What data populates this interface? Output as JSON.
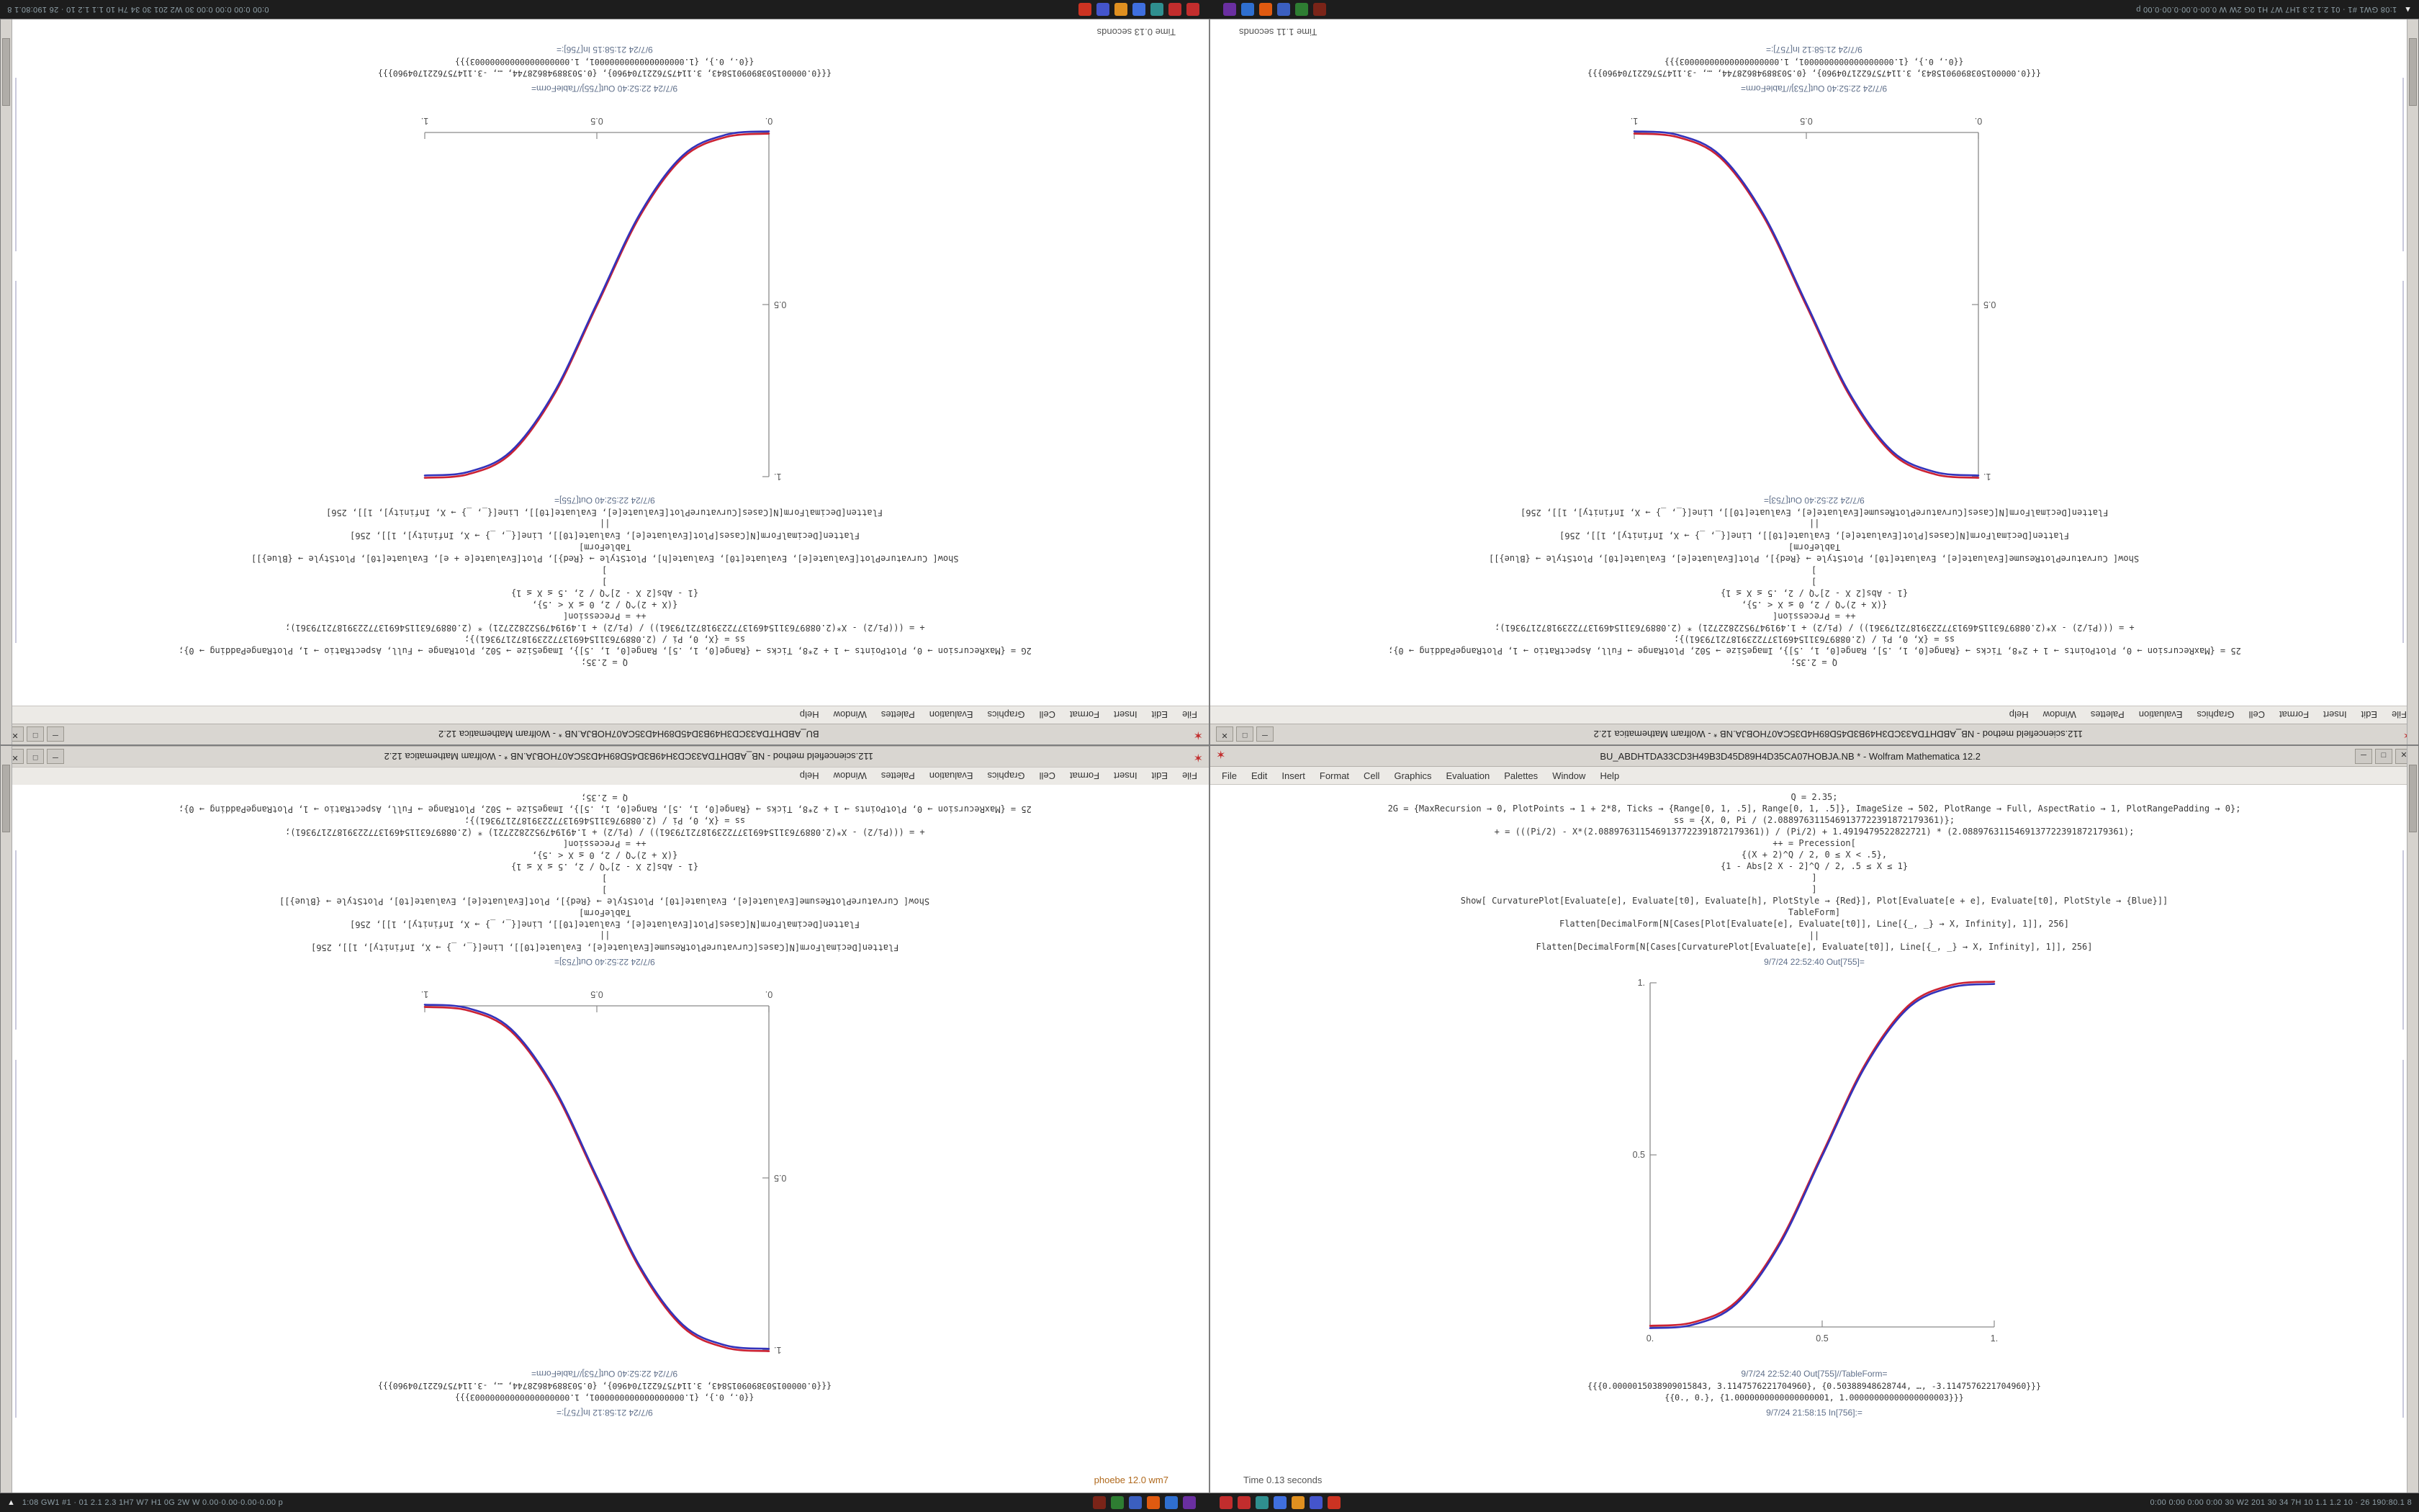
{
  "taskbar": {
    "up_arrow": "▲",
    "stats_left": "1:08 GW1 #1 · 01   2.1 2.3 1H7 W7 H1 0G 2W W   0.00·0.00·0.00·0.00   p",
    "stats_right": "0:00 0:00 0:00 0:00   30 W2 201 30 34 7H 10   1.1 1.2 10 · 26   190:80.1   8",
    "icons": [
      {
        "name": "app-icon-1",
        "color": "#7a2418"
      },
      {
        "name": "app-icon-2",
        "color": "#2e7d32"
      },
      {
        "name": "app-icon-3",
        "color": "#3b5fc0"
      },
      {
        "name": "app-icon-4",
        "color": "#e05a10"
      },
      {
        "name": "app-icon-5",
        "color": "#2f6fd0"
      },
      {
        "name": "app-icon-6",
        "color": "#6a2fa0"
      },
      {
        "name": "mathematica-icon-1",
        "color": "#c22d2d"
      },
      {
        "name": "mathematica-icon-2",
        "color": "#c22d2d"
      },
      {
        "name": "app-icon-7",
        "color": "#2f8f8f"
      },
      {
        "name": "app-icon-8",
        "color": "#3f6fdf"
      },
      {
        "name": "app-icon-9",
        "color": "#e09020"
      },
      {
        "name": "app-icon-10",
        "color": "#4455cc"
      },
      {
        "name": "app-icon-11",
        "color": "#cc3322"
      }
    ]
  },
  "window_a": {
    "title": "BU_ABDHTDA33CD3H49B3D45D89H4D35CA07HOBJA.NB * - Wolfram Mathematica 12.2",
    "menu": [
      "File",
      "Edit",
      "Insert",
      "Format",
      "Cell",
      "Graphics",
      "Evaluation",
      "Palettes",
      "Window",
      "Help"
    ],
    "buttons": {
      "min": "─",
      "max": "□",
      "close": "✕"
    },
    "code_lines": [
      "Q = 2.35;",
      "2G = {MaxRecursion → 0, PlotPoints → 1 + 2*8, Ticks → {Range[0, 1, .5], Range[0, 1, .5]}, ImageSize → 502, PlotRange → Full, AspectRatio → 1, PlotRangePadding → 0};",
      "ss = {X, 0, Pi / (2.0889763115469137722391872179361)};",
      "+ = (((Pi/2) - X*(2.0889763115469137722391872179361)) / (Pi/2) + 1.4919479522822721) * (2.0889763115469137722391872179361);",
      "++ = Precession[",
      "{(X + 2)^Q / 2, 0 ≤ X < .5},",
      "{1 - Abs[2 X - 2]^Q / 2, .5 ≤ X ≤ 1}",
      "]",
      "]",
      "Show[  CurvaturePlot[Evaluate[e], Evaluate[t0], Evaluate[h], PlotStyle → {Red}],  Plot[Evaluate[e + e], Evaluate[t0], PlotStyle → {Blue}]]",
      "TableForm]",
      "Flatten[DecimalForm[N[Cases[Plot[Evaluate[e], Evaluate[t0]], Line[{_, _} → X, Infinity], 1]], 256]",
      "||",
      "Flatten[DecimalForm[N[Cases[CurvaturePlot[Evaluate[e], Evaluate[t0]], Line[{_, _} → X, Infinity], 1]], 256]"
    ],
    "out_label": "9/7/24 22:52:40 Out[755]=",
    "tableform_label": "9/7/24 22:52:40 Out[755]//TableForm=",
    "result_line_1": "{{{0.0000015038909015843, 3.1147576221704960}, {0.50388948628744, …, -3.1147576221704960}}}",
    "result_line_2": "{{0., 0.}, {1.0000000000000000001, 1.00000000000000000003}}}",
    "in_label": "9/7/24 21:58:15 In[756]:=",
    "status": "Time 0.13 seconds",
    "chart_data": {
      "type": "line",
      "title": "",
      "xlabel": "",
      "ylabel": "",
      "x": [
        0,
        0.125,
        0.25,
        0.375,
        0.5,
        0.625,
        0.75,
        0.875,
        1
      ],
      "series": [
        {
          "name": "CurvaturePlot (Red)",
          "color": "#cc2233",
          "y": [
            0,
            0.01,
            0.07,
            0.24,
            0.5,
            0.76,
            0.93,
            0.99,
            1
          ]
        },
        {
          "name": "Plot (Blue)",
          "color": "#3333bb",
          "y": [
            0,
            0.01,
            0.07,
            0.24,
            0.5,
            0.76,
            0.93,
            0.99,
            1
          ]
        }
      ],
      "xlim": [
        0,
        1
      ],
      "ylim": [
        0,
        1
      ],
      "xticks": [
        0,
        0.5,
        1
      ],
      "yticks": [
        0.5,
        1
      ],
      "xtick_labels": [
        "0.",
        "0.5",
        "1."
      ],
      "ytick_labels": [
        "0.5",
        "1."
      ],
      "axis_color": "#8a8a8a",
      "grid": false,
      "legend": "none"
    }
  },
  "window_b": {
    "title": "112.sciencefield method - NB_ABDHTDA33CD3H49B3D45D89H4D35CA07HOBJA.NB * - Wolfram Mathematica 12.2",
    "menu": [
      "File",
      "Edit",
      "Insert",
      "Format",
      "Cell",
      "Graphics",
      "Evaluation",
      "Palettes",
      "Window",
      "Help"
    ],
    "buttons": {
      "min": "─",
      "max": "□",
      "close": "✕"
    },
    "code_lines": [
      "Q = 2.35;",
      "25 = {MaxRecursion → 0, PlotPoints → 1 + 2*8, Ticks → {Range[0, 1, .5], Range[0, 1, .5]}, ImageSize → 502, PlotRange → Full, AspectRatio → 1, PlotRangePadding → 0};",
      "ss = {X, 0, Pi / (2.0889763115469137722391872179361)};",
      "+ = (((Pi/2) - X*(2.0889763115469137722391872179361)) / (Pi/2) + 1.4919479522822721) * (2.0889763115469137722391872179361);",
      "++ = Precession[",
      "{(X + 2)^Q / 2, 0 ≤ X < .5},",
      "{1 - Abs[2 X - 2]^Q / 2, .5 ≤ X ≤ 1}",
      "]",
      "]",
      "Show[  CurvaturePlotResume[Evaluate[e], Evaluate[t0], PlotStyle → {Red}],  Plot[Evaluate[e], Evaluate[t0], PlotStyle → {Blue}]]",
      "TableForm]",
      "Flatten[DecimalForm[N[Cases[Plot[Evaluate[e], Evaluate[t0]], Line[{_, _} → X, Infinity], 1]], 256]",
      "||",
      "Flatten[DecimalForm[N[Cases[CurvaturePlotResume[Evaluate[e], Evaluate[t0]], Line[{_, _} → X, Infinity], 1]], 256]"
    ],
    "out_label": "9/7/24 22:52:40 Out[753]=",
    "tableform_label": "9/7/24 22:52:40 Out[753]//TableForm=",
    "result_line_1": "{{{0.0000015038909015843, 3.1147576221704960}, {0.50388948628744, …, -3.1147576221704960}}}",
    "result_line_2": "{{0., 0.}, {1.0000000000000000001, 1.00000000000000000003}}}",
    "in_label": "9/7/24 21:58:12 In[757]:=",
    "status": "Time 1.11 seconds",
    "status_alt": "phoebe 12.0 wm7",
    "chart_data": {
      "type": "line",
      "title": "",
      "xlabel": "",
      "ylabel": "",
      "x": [
        0,
        0.125,
        0.25,
        0.375,
        0.5,
        0.625,
        0.75,
        0.875,
        1
      ],
      "series": [
        {
          "name": "CurvaturePlotResume (Red)",
          "color": "#cc2233",
          "y": [
            1,
            0.99,
            0.93,
            0.76,
            0.5,
            0.24,
            0.07,
            0.01,
            0
          ]
        },
        {
          "name": "Plot (Blue)",
          "color": "#3333bb",
          "y": [
            1,
            0.99,
            0.93,
            0.76,
            0.5,
            0.24,
            0.07,
            0.01,
            0
          ]
        }
      ],
      "xlim": [
        0,
        1
      ],
      "ylim": [
        0,
        1
      ],
      "xticks": [
        0,
        0.5,
        1
      ],
      "yticks": [
        0.5,
        1
      ],
      "xtick_labels": [
        "0.",
        "0.5",
        "1."
      ],
      "ytick_labels": [
        "0.5",
        "1."
      ],
      "axis_color": "#8a8a8a",
      "grid": false,
      "legend": "none"
    }
  }
}
